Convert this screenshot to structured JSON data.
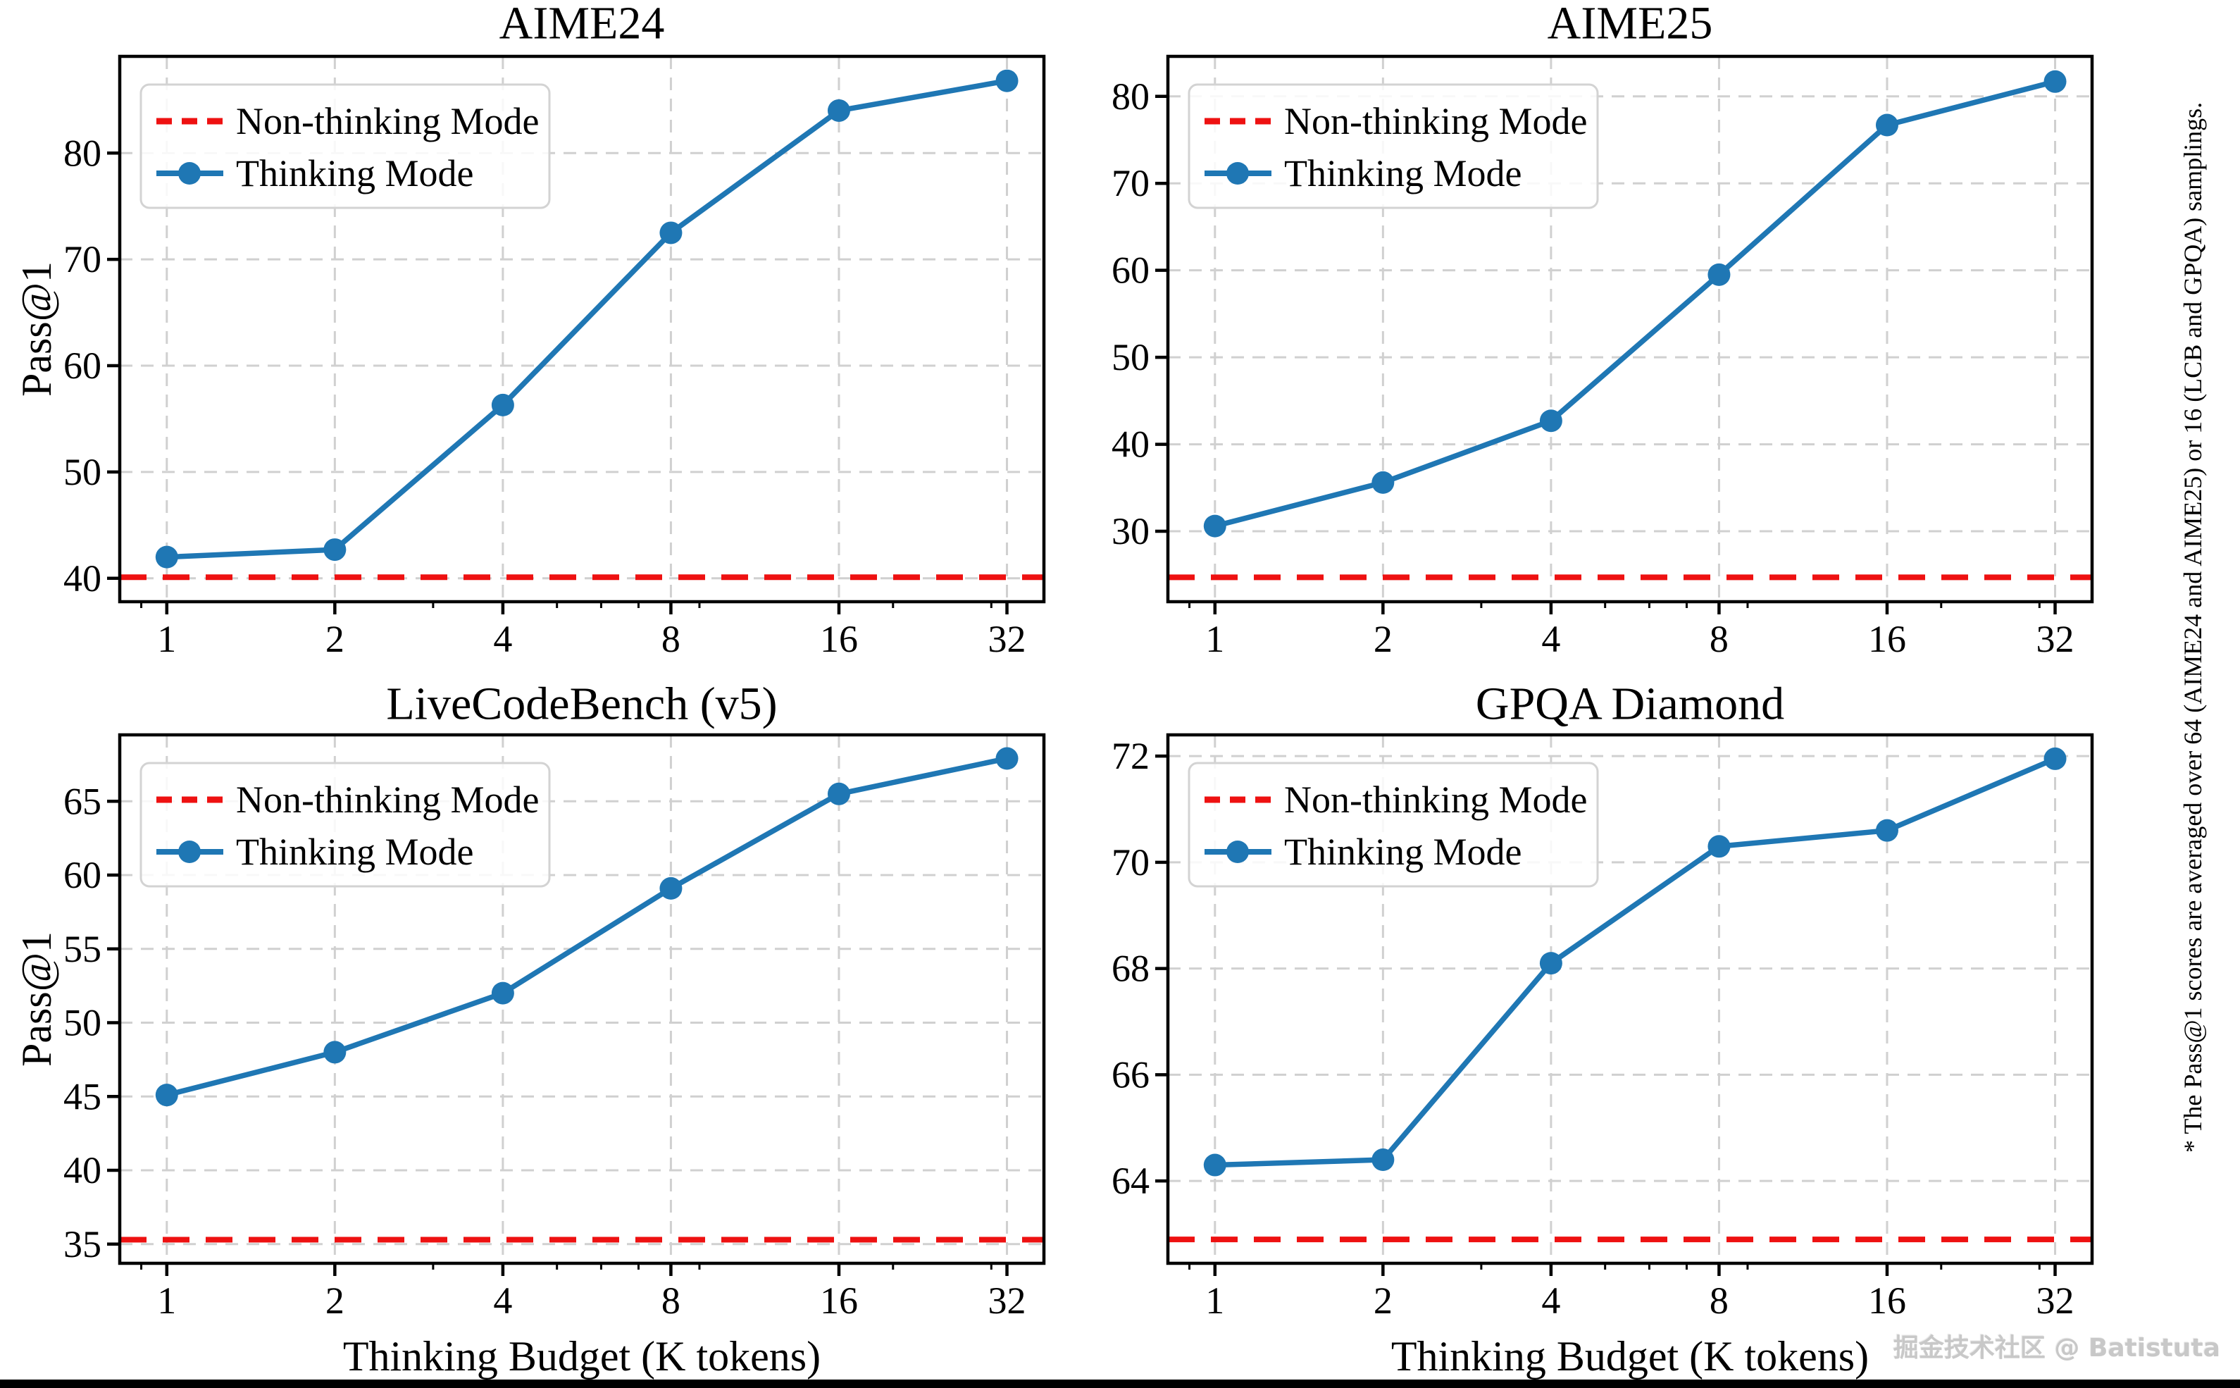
{
  "figure": {
    "ylabel": "Pass@1",
    "xlabel": "Thinking Budget (K tokens)",
    "legend": {
      "non_thinking_label": "Non-thinking Mode",
      "thinking_label": "Thinking Mode"
    },
    "x_minor_ticks": [
      0.9,
      3,
      5,
      6,
      7,
      9,
      20,
      30
    ],
    "colors": {
      "thinking_line": "#1f77b4",
      "non_thinking_line": "#ee1111",
      "grid": "#d0d0d0",
      "spine": "#000000",
      "text": "#000000",
      "legend_border": "#d3d3d3"
    }
  },
  "chart_data": [
    {
      "type": "line",
      "title": "AIME24",
      "x": [
        1,
        2,
        4,
        8,
        16,
        32
      ],
      "x_scale": "log2",
      "x_ticklabels": [
        "1",
        "2",
        "4",
        "8",
        "16",
        "32"
      ],
      "series": [
        {
          "name": "Thinking Mode",
          "values": [
            42.0,
            42.7,
            56.3,
            72.5,
            84.0,
            86.8
          ]
        }
      ],
      "baseline": {
        "name": "Non-thinking Mode",
        "value": 40.1
      },
      "yticks": [
        40,
        50,
        60,
        70,
        80
      ],
      "ylim": [
        37.8,
        89.1
      ],
      "grid": true,
      "legend_position": "upper-left",
      "ylabel_visible": true,
      "xlabel_visible": false
    },
    {
      "type": "line",
      "title": "AIME25",
      "x": [
        1,
        2,
        4,
        8,
        16,
        32
      ],
      "x_scale": "log2",
      "x_ticklabels": [
        "1",
        "2",
        "4",
        "8",
        "16",
        "32"
      ],
      "series": [
        {
          "name": "Thinking Mode",
          "values": [
            30.6,
            35.6,
            42.7,
            59.5,
            76.7,
            81.7
          ]
        }
      ],
      "baseline": {
        "name": "Non-thinking Mode",
        "value": 24.7
      },
      "yticks": [
        30,
        40,
        50,
        60,
        70,
        80
      ],
      "ylim": [
        21.9,
        84.6
      ],
      "grid": true,
      "legend_position": "upper-left",
      "ylabel_visible": false,
      "xlabel_visible": false
    },
    {
      "type": "line",
      "title": "LiveCodeBench (v5)",
      "x": [
        1,
        2,
        4,
        8,
        16,
        32
      ],
      "x_scale": "log2",
      "x_ticklabels": [
        "1",
        "2",
        "4",
        "8",
        "16",
        "32"
      ],
      "series": [
        {
          "name": "Thinking Mode",
          "values": [
            45.1,
            48.0,
            52.0,
            59.1,
            65.5,
            67.9
          ]
        }
      ],
      "baseline": {
        "name": "Non-thinking Mode",
        "value": 35.3
      },
      "yticks": [
        35,
        40,
        45,
        50,
        55,
        60,
        65
      ],
      "ylim": [
        33.7,
        69.5
      ],
      "grid": true,
      "legend_position": "upper-left",
      "ylabel_visible": true,
      "xlabel_visible": true
    },
    {
      "type": "line",
      "title": "GPQA Diamond",
      "x": [
        1,
        2,
        4,
        8,
        16,
        32
      ],
      "x_scale": "log2",
      "x_ticklabels": [
        "1",
        "2",
        "4",
        "8",
        "16",
        "32"
      ],
      "series": [
        {
          "name": "Thinking Mode",
          "values": [
            64.3,
            64.4,
            68.1,
            70.3,
            70.6,
            71.95
          ]
        }
      ],
      "baseline": {
        "name": "Non-thinking Mode",
        "value": 62.9
      },
      "yticks": [
        64,
        66,
        68,
        70,
        72
      ],
      "ylim": [
        62.45,
        72.4
      ],
      "grid": true,
      "legend_position": "upper-left",
      "ylabel_visible": false,
      "xlabel_visible": true
    }
  ],
  "annotations": {
    "side_note": "* The Pass@1 scores are averaged over 64 (AIME24 and AIME25) or 16 (LCB and GPQA) samplings.",
    "watermark": "掘金技术社区 @ Batistuta"
  }
}
